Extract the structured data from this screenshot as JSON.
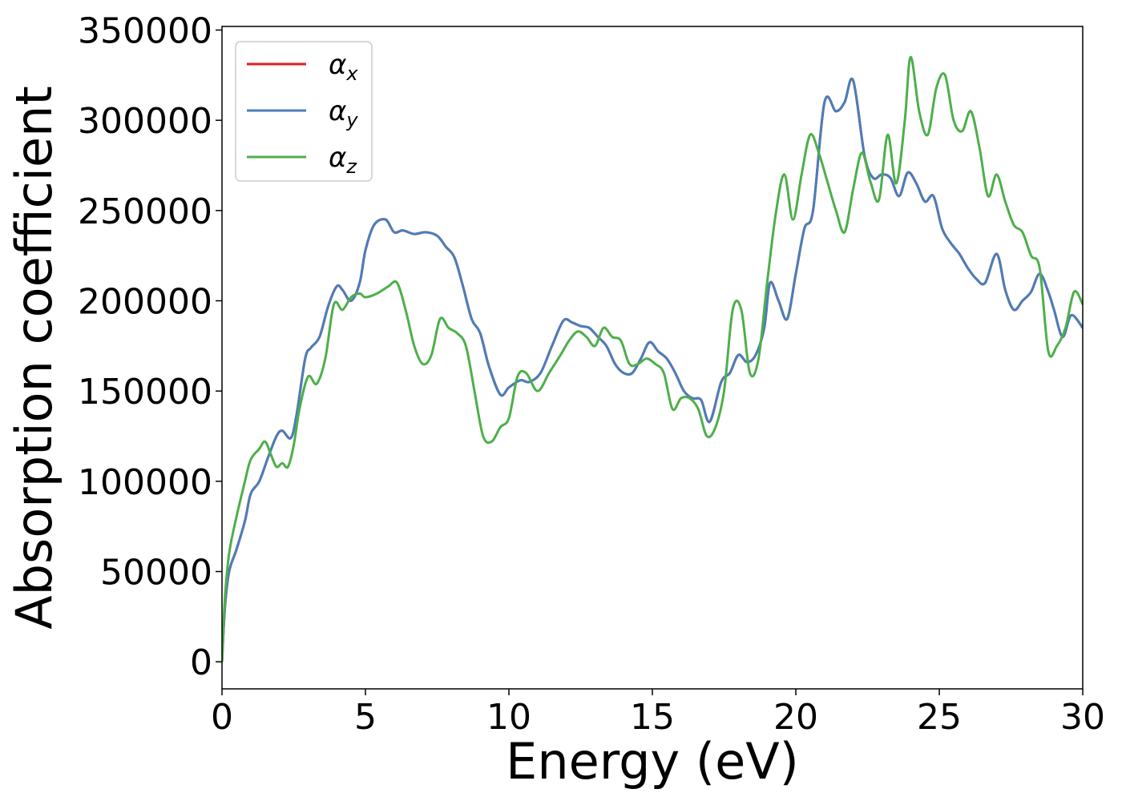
{
  "chart_data": {
    "type": "line",
    "title": "",
    "xlabel": "Energy (eV)",
    "ylabel": "Absorption coefficient",
    "xlim": [
      0,
      30
    ],
    "ylim": [
      -15000,
      352000
    ],
    "xticks": [
      0,
      5,
      10,
      15,
      20,
      25,
      30
    ],
    "xtick_labels": [
      "0",
      "5",
      "10",
      "15",
      "20",
      "25",
      "30"
    ],
    "yticks": [
      0,
      50000,
      100000,
      150000,
      200000,
      250000,
      300000,
      350000
    ],
    "ytick_labels": [
      "0",
      "50000",
      "100000",
      "150000",
      "200000",
      "250000",
      "300000",
      "350000"
    ],
    "grid": false,
    "legend_position": "top-left",
    "series": [
      {
        "name": "α",
        "subscript": "x",
        "color": "#e41a1c",
        "x": [
          0,
          0.1,
          0.25,
          0.5,
          0.8,
          1.0,
          1.3,
          1.6,
          1.9,
          2.1,
          2.4,
          2.6,
          2.9,
          3.1,
          3.4,
          3.7,
          4.0,
          4.2,
          4.5,
          4.8,
          5.0,
          5.3,
          5.7,
          6.0,
          6.3,
          6.7,
          7.1,
          7.5,
          7.8,
          8.1,
          8.4,
          8.7,
          9.0,
          9.3,
          9.7,
          10.0,
          10.4,
          10.7,
          11.1,
          11.5,
          11.9,
          12.2,
          12.5,
          12.8,
          13.1,
          13.4,
          13.7,
          14.0,
          14.3,
          14.6,
          14.9,
          15.2,
          15.5,
          15.8,
          16.1,
          16.4,
          16.7,
          17.0,
          17.4,
          17.7,
          18.0,
          18.3,
          18.6,
          18.9,
          19.1,
          19.4,
          19.7,
          20.0,
          20.3,
          20.6,
          21.0,
          21.4,
          21.7,
          22.0,
          22.4,
          22.7,
          23.0,
          23.3,
          23.6,
          23.9,
          24.2,
          24.5,
          24.8,
          25.1,
          25.4,
          25.7,
          26.0,
          26.3,
          26.6,
          27.0,
          27.3,
          27.6,
          27.9,
          28.2,
          28.5,
          28.8,
          29.0,
          29.3,
          29.6,
          30.0
        ],
        "y": [
          0,
          30000,
          50000,
          62000,
          78000,
          93000,
          100000,
          113000,
          125000,
          128000,
          124000,
          137000,
          168000,
          174000,
          180000,
          197000,
          208000,
          206000,
          200000,
          210000,
          228000,
          242000,
          245000,
          238000,
          239000,
          237000,
          238000,
          236000,
          230000,
          224000,
          208000,
          190000,
          182000,
          164000,
          148000,
          152000,
          156000,
          155000,
          160000,
          175000,
          189000,
          188000,
          186000,
          185000,
          180000,
          175000,
          165000,
          160000,
          160000,
          168000,
          177000,
          172000,
          168000,
          160000,
          150000,
          146000,
          145000,
          133000,
          155000,
          160000,
          170000,
          166000,
          170000,
          185000,
          210000,
          200000,
          190000,
          215000,
          240000,
          250000,
          310000,
          305000,
          310000,
          322000,
          280000,
          268000,
          270000,
          268000,
          258000,
          271000,
          265000,
          255000,
          258000,
          240000,
          232000,
          226000,
          218000,
          212000,
          210000,
          226000,
          206000,
          195000,
          200000,
          205000,
          215000,
          205000,
          195000,
          180000,
          192000,
          185000
        ]
      },
      {
        "name": "α",
        "subscript": "y",
        "color": "#4a7eba",
        "x": [
          0,
          0.1,
          0.25,
          0.5,
          0.8,
          1.0,
          1.3,
          1.6,
          1.9,
          2.1,
          2.4,
          2.6,
          2.9,
          3.1,
          3.4,
          3.7,
          4.0,
          4.2,
          4.5,
          4.8,
          5.0,
          5.3,
          5.7,
          6.0,
          6.3,
          6.7,
          7.1,
          7.5,
          7.8,
          8.1,
          8.4,
          8.7,
          9.0,
          9.3,
          9.7,
          10.0,
          10.4,
          10.7,
          11.1,
          11.5,
          11.9,
          12.2,
          12.5,
          12.8,
          13.1,
          13.4,
          13.7,
          14.0,
          14.3,
          14.6,
          14.9,
          15.2,
          15.5,
          15.8,
          16.1,
          16.4,
          16.7,
          17.0,
          17.4,
          17.7,
          18.0,
          18.3,
          18.6,
          18.9,
          19.1,
          19.4,
          19.7,
          20.0,
          20.3,
          20.6,
          21.0,
          21.4,
          21.7,
          22.0,
          22.4,
          22.7,
          23.0,
          23.3,
          23.6,
          23.9,
          24.2,
          24.5,
          24.8,
          25.1,
          25.4,
          25.7,
          26.0,
          26.3,
          26.6,
          27.0,
          27.3,
          27.6,
          27.9,
          28.2,
          28.5,
          28.8,
          29.0,
          29.3,
          29.6,
          30.0
        ],
        "y": [
          0,
          30000,
          50000,
          62000,
          78000,
          93000,
          100000,
          113000,
          125000,
          128000,
          124000,
          137000,
          168000,
          174000,
          180000,
          197000,
          208000,
          206000,
          200000,
          210000,
          228000,
          242000,
          245000,
          238000,
          239000,
          237000,
          238000,
          236000,
          230000,
          224000,
          208000,
          190000,
          182000,
          164000,
          148000,
          152000,
          156000,
          155000,
          160000,
          175000,
          189000,
          188000,
          186000,
          185000,
          180000,
          175000,
          165000,
          160000,
          160000,
          168000,
          177000,
          172000,
          168000,
          160000,
          150000,
          146000,
          145000,
          133000,
          155000,
          160000,
          170000,
          166000,
          170000,
          185000,
          210000,
          200000,
          190000,
          215000,
          240000,
          250000,
          310000,
          305000,
          310000,
          322000,
          280000,
          268000,
          270000,
          268000,
          258000,
          271000,
          265000,
          255000,
          258000,
          240000,
          232000,
          226000,
          218000,
          212000,
          210000,
          226000,
          206000,
          195000,
          200000,
          205000,
          215000,
          205000,
          195000,
          180000,
          192000,
          185000
        ]
      },
      {
        "name": "α",
        "subscript": "z",
        "color": "#4daf4a",
        "x": [
          0,
          0.1,
          0.25,
          0.5,
          0.8,
          1.0,
          1.3,
          1.5,
          1.7,
          1.9,
          2.1,
          2.3,
          2.5,
          2.7,
          3.0,
          3.3,
          3.6,
          3.9,
          4.2,
          4.5,
          4.8,
          5.0,
          5.4,
          5.8,
          6.1,
          6.4,
          6.7,
          7.0,
          7.3,
          7.6,
          7.9,
          8.2,
          8.5,
          8.8,
          9.1,
          9.4,
          9.7,
          10.0,
          10.3,
          10.6,
          11.0,
          11.4,
          11.8,
          12.1,
          12.4,
          12.7,
          13.0,
          13.3,
          13.6,
          13.9,
          14.2,
          14.5,
          14.8,
          15.1,
          15.4,
          15.7,
          16.0,
          16.3,
          16.6,
          16.9,
          17.2,
          17.5,
          17.8,
          18.1,
          18.4,
          18.7,
          19.0,
          19.3,
          19.6,
          19.9,
          20.2,
          20.5,
          20.8,
          21.1,
          21.4,
          21.7,
          22.0,
          22.3,
          22.6,
          22.9,
          23.2,
          23.5,
          23.8,
          24.0,
          24.3,
          24.6,
          24.9,
          25.2,
          25.5,
          25.8,
          26.1,
          26.4,
          26.7,
          27.0,
          27.3,
          27.6,
          27.9,
          28.2,
          28.5,
          28.8,
          29.1,
          29.4,
          29.7,
          30.0
        ],
        "y": [
          0,
          35000,
          60000,
          80000,
          100000,
          112000,
          118000,
          122000,
          115000,
          108000,
          110000,
          108000,
          120000,
          140000,
          158000,
          154000,
          168000,
          198000,
          195000,
          202000,
          204000,
          202000,
          204000,
          208000,
          210000,
          195000,
          175000,
          165000,
          170000,
          190000,
          185000,
          182000,
          175000,
          150000,
          125000,
          122000,
          130000,
          135000,
          158000,
          160000,
          150000,
          160000,
          170000,
          178000,
          183000,
          180000,
          175000,
          185000,
          180000,
          178000,
          165000,
          165000,
          168000,
          165000,
          160000,
          140000,
          146000,
          146000,
          140000,
          125000,
          130000,
          150000,
          195000,
          195000,
          160000,
          168000,
          210000,
          248000,
          270000,
          245000,
          270000,
          292000,
          282000,
          266000,
          250000,
          238000,
          262000,
          282000,
          266000,
          256000,
          292000,
          265000,
          300000,
          335000,
          305000,
          292000,
          318000,
          325000,
          300000,
          294000,
          305000,
          285000,
          258000,
          270000,
          255000,
          242000,
          238000,
          225000,
          218000,
          172000,
          175000,
          185000,
          205000,
          198000
        ]
      }
    ]
  }
}
